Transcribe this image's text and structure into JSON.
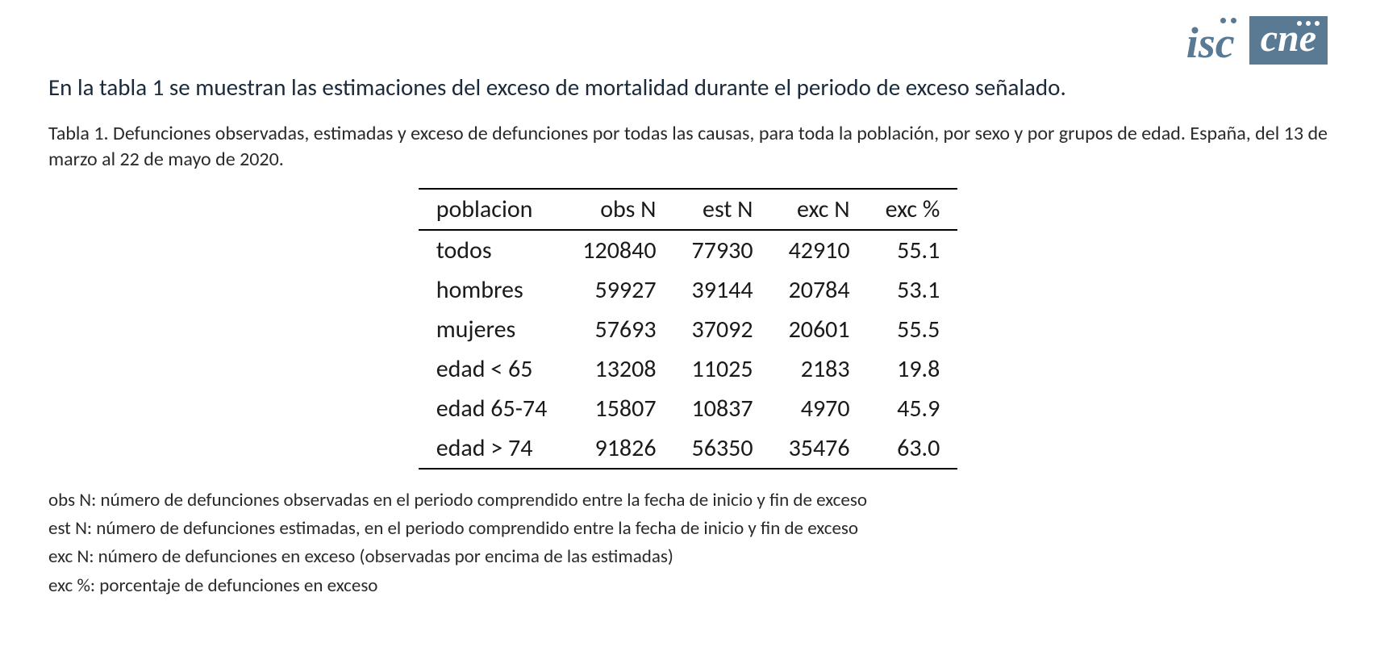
{
  "logos": {
    "isc_text": "isc",
    "cne_text": "cne"
  },
  "intro_text": "En la tabla 1 se muestran las estimaciones del exceso de mortalidad durante el periodo de exceso señalado.",
  "table_caption": "Tabla 1. Defunciones observadas, estimadas y exceso de defunciones por todas las causas, para toda la población, por sexo y por grupos de edad. España, del 13 de marzo al 22 de mayo de 2020.",
  "table": {
    "type": "table",
    "columns": [
      {
        "key": "poblacion",
        "label": "poblacion",
        "align": "left"
      },
      {
        "key": "obs_n",
        "label": "obs N",
        "align": "right"
      },
      {
        "key": "est_n",
        "label": "est N",
        "align": "right"
      },
      {
        "key": "exc_n",
        "label": "exc N",
        "align": "right"
      },
      {
        "key": "exc_pct",
        "label": "exc %",
        "align": "right"
      }
    ],
    "rows": [
      {
        "poblacion": "todos",
        "obs_n": "120840",
        "est_n": "77930",
        "exc_n": "42910",
        "exc_pct": "55.1"
      },
      {
        "poblacion": "hombres",
        "obs_n": "59927",
        "est_n": "39144",
        "exc_n": "20784",
        "exc_pct": "53.1"
      },
      {
        "poblacion": "mujeres",
        "obs_n": "57693",
        "est_n": "37092",
        "exc_n": "20601",
        "exc_pct": "55.5"
      },
      {
        "poblacion": "edad < 65",
        "obs_n": "13208",
        "est_n": "11025",
        "exc_n": "2183",
        "exc_pct": "19.8"
      },
      {
        "poblacion": "edad 65-74",
        "obs_n": "15807",
        "est_n": "10837",
        "exc_n": "4970",
        "exc_pct": "45.9"
      },
      {
        "poblacion": "edad > 74",
        "obs_n": "91826",
        "est_n": "56350",
        "exc_n": "35476",
        "exc_pct": "63.0"
      }
    ],
    "border_color": "#000000",
    "font_size_pt": 22,
    "background_color": "#ffffff"
  },
  "footnotes": [
    "obs N: número de defunciones observadas en el periodo comprendido entre la fecha de inicio y fin de exceso",
    "est N: número de defunciones estimadas, en el periodo comprendido entre la fecha de inicio y fin de exceso",
    "exc N: número de defunciones en exceso (observadas por encima de las estimadas)",
    "exc %: porcentaje de defunciones en exceso"
  ],
  "colors": {
    "brand_blue": "#5a7a93",
    "text_dark": "#1a2a3a",
    "background": "#ffffff"
  }
}
